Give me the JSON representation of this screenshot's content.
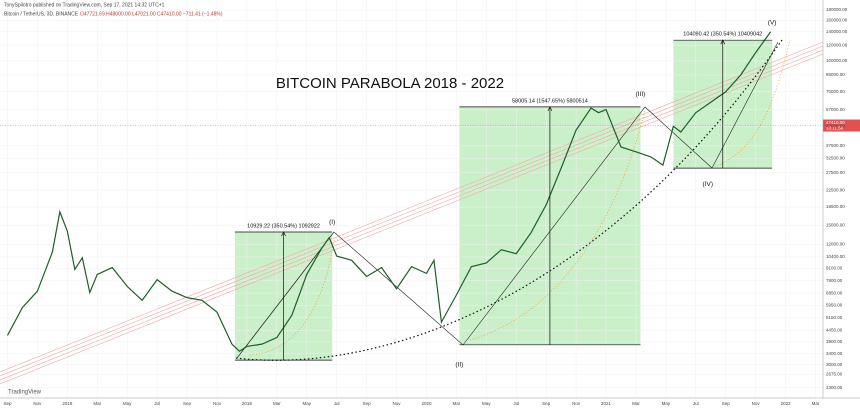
{
  "header": {
    "author": "TonySpilotro published on TradingView.com, Sep 17, 2021 14:32 UTC+1",
    "symbol": "Bitcoin / TetherUS, 3D, BINANCE",
    "ohlc": "O47721.69 H48000.00 L47021.00 C47410.00 −711.41 (−1.48%)",
    "brand": "TradingView"
  },
  "chart_data": {
    "type": "line",
    "title": "BITCOIN PARABOLA 2018 - 2022",
    "color": "#1e5e2a",
    "log_scale": true,
    "x": [
      0,
      1,
      2,
      3,
      3.5,
      4,
      4.5,
      5,
      5.5,
      6,
      7,
      8,
      9,
      10,
      11,
      12,
      13,
      14,
      15,
      15.5,
      16,
      17,
      18,
      19,
      20,
      21,
      21.5,
      22,
      23,
      24,
      25,
      26,
      27,
      28,
      28.5,
      29,
      30,
      31,
      32,
      33,
      34,
      35,
      36,
      37,
      38,
      39,
      39.5,
      40,
      41,
      42,
      43,
      43.8,
      44.5,
      45,
      46,
      47,
      48,
      49,
      50,
      51
    ],
    "values": [
      4200,
      5800,
      7000,
      11000,
      17500,
      14000,
      9000,
      10300,
      6900,
      8500,
      9200,
      7400,
      6300,
      8000,
      7000,
      6500,
      6300,
      5500,
      3800,
      3500,
      3700,
      3800,
      4100,
      5300,
      8500,
      11500,
      13000,
      10500,
      10000,
      8300,
      9200,
      7200,
      9300,
      8600,
      10000,
      4900,
      6700,
      9300,
      9700,
      11300,
      10800,
      13800,
      19000,
      29000,
      45000,
      58000,
      55000,
      57000,
      37000,
      35000,
      33000,
      30000,
      47000,
      44000,
      55000,
      62000,
      70000,
      85000,
      110000,
      140000
    ],
    "current_price": {
      "value": 47410,
      "label": "47410.00",
      "countdown": "13:11:58"
    },
    "xlim": [
      -0.5,
      54.5
    ],
    "ylim": [
      2040,
      202000
    ],
    "xticks": [
      {
        "value": 0,
        "label": "Sep"
      },
      {
        "value": 2,
        "label": "Nov"
      },
      {
        "value": 4,
        "label": "2018"
      },
      {
        "value": 6,
        "label": "Mar"
      },
      {
        "value": 8,
        "label": "May"
      },
      {
        "value": 10,
        "label": "Jul"
      },
      {
        "value": 12,
        "label": "Sep"
      },
      {
        "value": 14,
        "label": "Nov"
      },
      {
        "value": 16,
        "label": "2019"
      },
      {
        "value": 18,
        "label": "Mar"
      },
      {
        "value": 20,
        "label": "May"
      },
      {
        "value": 22,
        "label": "Jul"
      },
      {
        "value": 24,
        "label": "Sep"
      },
      {
        "value": 26,
        "label": "Nov"
      },
      {
        "value": 28,
        "label": "2020"
      },
      {
        "value": 30,
        "label": "Mar"
      },
      {
        "value": 32,
        "label": "May"
      },
      {
        "value": 34,
        "label": "Jul"
      },
      {
        "value": 36,
        "label": "Sep"
      },
      {
        "value": 38,
        "label": "Nov"
      },
      {
        "value": 40,
        "label": "2021"
      },
      {
        "value": 42,
        "label": "Mar"
      },
      {
        "value": 44,
        "label": "May"
      },
      {
        "value": 46,
        "label": "Jul"
      },
      {
        "value": 48,
        "label": "Sep"
      },
      {
        "value": 50,
        "label": "Nov"
      },
      {
        "value": 52,
        "label": "2022"
      },
      {
        "value": 54,
        "label": "Mar"
      }
    ],
    "yticks": [
      {
        "value": 180000,
        "label": "180000.00"
      },
      {
        "value": 160000,
        "label": "160000.00"
      },
      {
        "value": 140000,
        "label": "140000.00"
      },
      {
        "value": 120000,
        "label": "120000.00"
      },
      {
        "value": 100000,
        "label": "100000.00"
      },
      {
        "value": 85000,
        "label": "85000.00"
      },
      {
        "value": 70000,
        "label": "70000.00"
      },
      {
        "value": 57000,
        "label": "57000.00"
      },
      {
        "value": 47000,
        "label": "47000.00"
      },
      {
        "value": 37500,
        "label": "37500.00"
      },
      {
        "value": 32500,
        "label": "32500.00"
      },
      {
        "value": 27500,
        "label": "27500.00"
      },
      {
        "value": 22500,
        "label": "22500.00"
      },
      {
        "value": 18500,
        "label": "18500.00"
      },
      {
        "value": 15000,
        "label": "15000.00"
      },
      {
        "value": 12000,
        "label": "12000.00"
      },
      {
        "value": 10400,
        "label": "10400.00"
      },
      {
        "value": 9100,
        "label": "9100.00"
      },
      {
        "value": 7900,
        "label": "7900.00"
      },
      {
        "value": 6850,
        "label": "6850.00"
      },
      {
        "value": 5950,
        "label": "5950.00"
      },
      {
        "value": 5150,
        "label": "5150.00"
      },
      {
        "value": 4450,
        "label": "4450.00"
      },
      {
        "value": 3900,
        "label": "3900.00"
      },
      {
        "value": 3400,
        "label": "3400.00"
      },
      {
        "value": 3000,
        "label": "3000.00"
      },
      {
        "value": 2675,
        "label": "2675.00"
      },
      {
        "value": 2300,
        "label": "2300.00"
      }
    ],
    "boxes": [
      {
        "label": "10929.22 (350.54%) 1092922",
        "x": [
          15.2,
          21.7
        ],
        "y": [
          3160,
          13870
        ]
      },
      {
        "label": "58005.14 (1547.65%) 5800514",
        "x": [
          30.2,
          42.3
        ],
        "y": [
          3770,
          58800
        ]
      },
      {
        "label": "104090.42 (350.54%) 10409042",
        "x": [
          44.5,
          51.1
        ],
        "y": [
          29000,
          127000
        ]
      }
    ],
    "waves": [
      {
        "label": "(I)",
        "x": 21.7,
        "y": 15500
      },
      {
        "label": "(II)",
        "x": 30.2,
        "y": 3000
      },
      {
        "label": "(III)",
        "x": 42.3,
        "y": 68000
      },
      {
        "label": "(IV)",
        "x": 46.8,
        "y": 24000
      },
      {
        "label": "(V)",
        "x": 51.1,
        "y": 155000
      }
    ]
  }
}
